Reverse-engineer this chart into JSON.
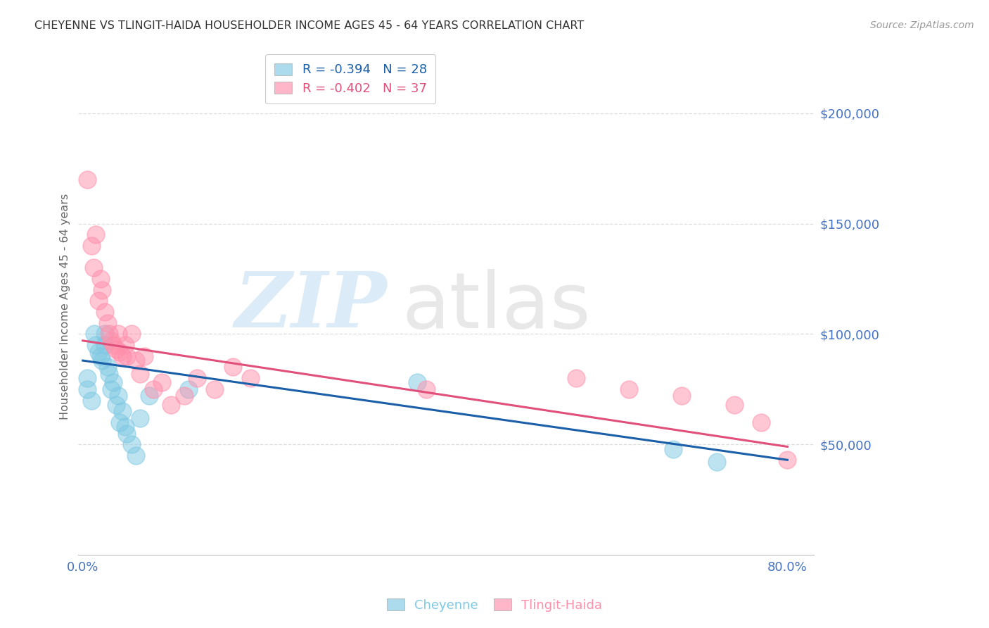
{
  "title": "CHEYENNE VS TLINGIT-HAIDA HOUSEHOLDER INCOME AGES 45 - 64 YEARS CORRELATION CHART",
  "source": "Source: ZipAtlas.com",
  "ylabel": "Householder Income Ages 45 - 64 years",
  "ytick_labels": [
    "$50,000",
    "$100,000",
    "$150,000",
    "$200,000"
  ],
  "ytick_values": [
    50000,
    100000,
    150000,
    200000
  ],
  "ylim": [
    0,
    225000
  ],
  "xlim": [
    -0.005,
    0.83
  ],
  "legend_line1": "R = -0.394   N = 28",
  "legend_line2": "R = -0.402   N = 37",
  "cheyenne_color": "#7ec8e3",
  "tlingit_color": "#ff8fab",
  "background_color": "#ffffff",
  "grid_color": "#cccccc",
  "title_color": "#444444",
  "axis_label_color": "#4472c4",
  "cheyenne_x": [
    0.005,
    0.005,
    0.01,
    0.013,
    0.015,
    0.018,
    0.02,
    0.022,
    0.025,
    0.025,
    0.028,
    0.03,
    0.032,
    0.035,
    0.038,
    0.04,
    0.042,
    0.045,
    0.048,
    0.05,
    0.055,
    0.06,
    0.065,
    0.075,
    0.12,
    0.38,
    0.67,
    0.72
  ],
  "cheyenne_y": [
    80000,
    75000,
    70000,
    100000,
    95000,
    92000,
    90000,
    88000,
    100000,
    95000,
    85000,
    82000,
    75000,
    78000,
    68000,
    72000,
    60000,
    65000,
    58000,
    55000,
    50000,
    45000,
    62000,
    72000,
    75000,
    78000,
    48000,
    42000
  ],
  "tlingit_x": [
    0.005,
    0.01,
    0.012,
    0.015,
    0.018,
    0.02,
    0.022,
    0.025,
    0.028,
    0.03,
    0.032,
    0.035,
    0.038,
    0.04,
    0.042,
    0.045,
    0.048,
    0.05,
    0.055,
    0.06,
    0.065,
    0.07,
    0.08,
    0.09,
    0.1,
    0.115,
    0.13,
    0.15,
    0.17,
    0.19,
    0.39,
    0.56,
    0.62,
    0.68,
    0.74,
    0.77,
    0.8
  ],
  "tlingit_y": [
    170000,
    140000,
    130000,
    145000,
    115000,
    125000,
    120000,
    110000,
    105000,
    100000,
    97000,
    95000,
    93000,
    100000,
    92000,
    90000,
    95000,
    90000,
    100000,
    88000,
    82000,
    90000,
    75000,
    78000,
    68000,
    72000,
    80000,
    75000,
    85000,
    80000,
    75000,
    80000,
    75000,
    72000,
    68000,
    60000,
    43000
  ],
  "cheyenne_line_x0": 0.0,
  "cheyenne_line_y0": 88000,
  "cheyenne_line_x1": 0.8,
  "cheyenne_line_y1": 43000,
  "tlingit_line_x0": 0.0,
  "tlingit_line_y0": 97000,
  "tlingit_line_x1": 0.8,
  "tlingit_line_y1": 49000
}
